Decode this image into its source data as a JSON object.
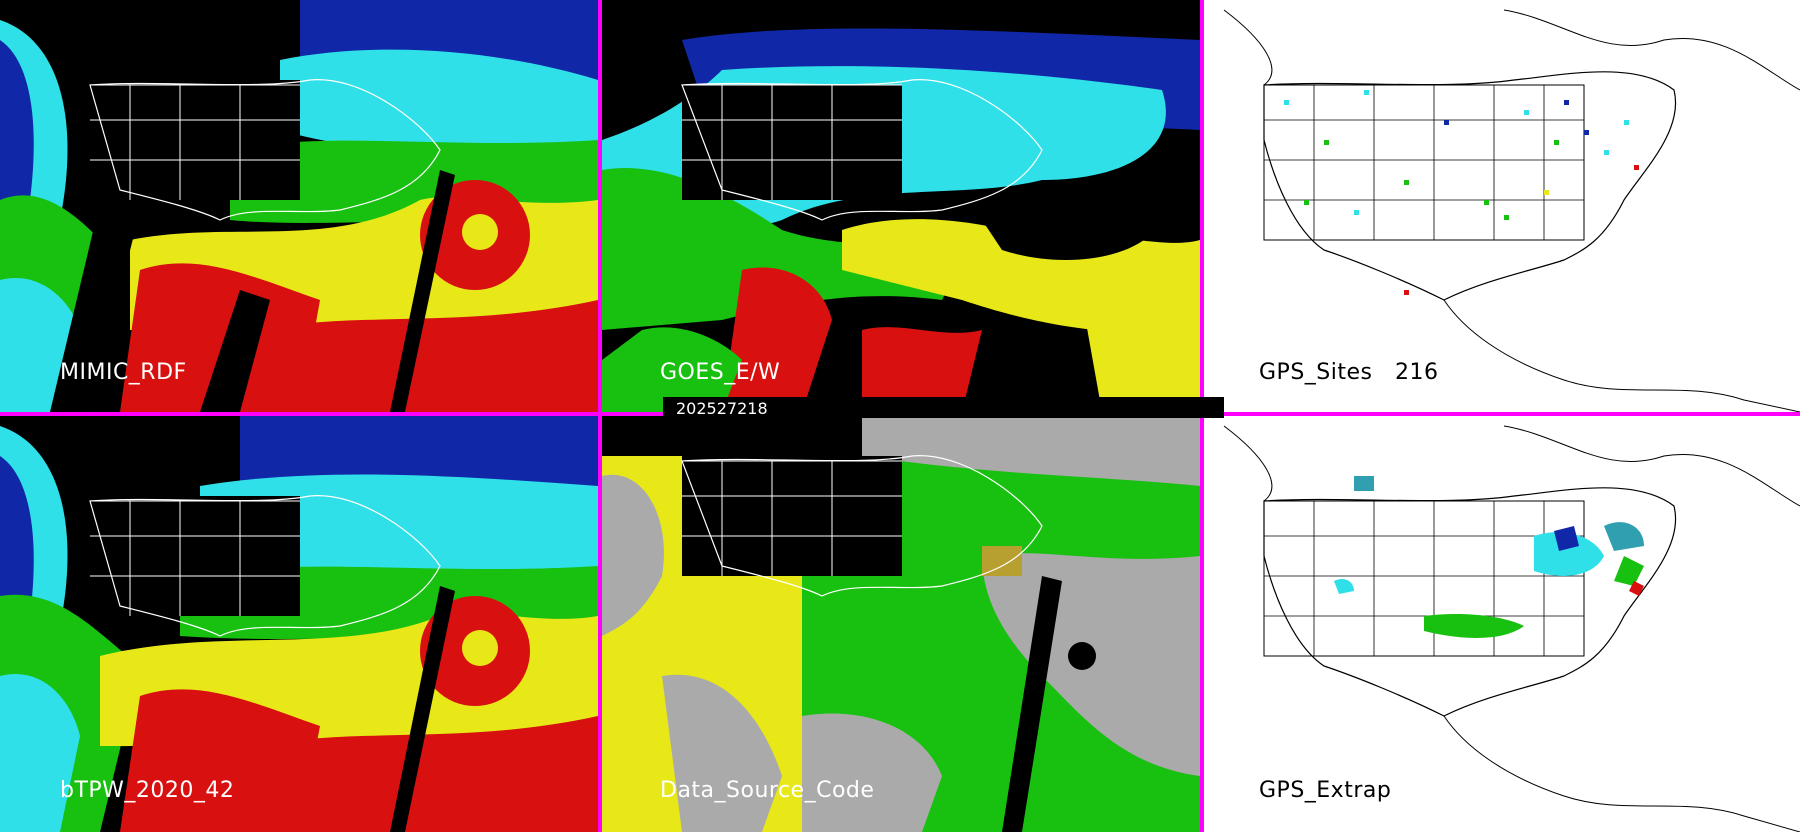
{
  "timestamp": "202527218",
  "panels": [
    {
      "id": "mimic",
      "label": "MIMIC_RDF",
      "bg": "dark"
    },
    {
      "id": "goes",
      "label": "GOES_E/W",
      "bg": "dark"
    },
    {
      "id": "gps_sites",
      "label": "GPS_Sites",
      "count": "216",
      "bg": "light"
    },
    {
      "id": "btpw",
      "label": "bTPW_2020_42",
      "bg": "dark"
    },
    {
      "id": "dsc",
      "label": "Data_Source_Code",
      "bg": "dark"
    },
    {
      "id": "gps_extrap",
      "label": "GPS_Extrap",
      "bg": "light"
    }
  ],
  "colors": {
    "separator": "#ff00ff",
    "blue": "#1028a8",
    "cyan": "#30e0e8",
    "green": "#18c010",
    "yellow": "#e8e818",
    "red": "#d81010",
    "gray": "#aaaaaa",
    "black": "#000000",
    "white": "#ffffff"
  }
}
